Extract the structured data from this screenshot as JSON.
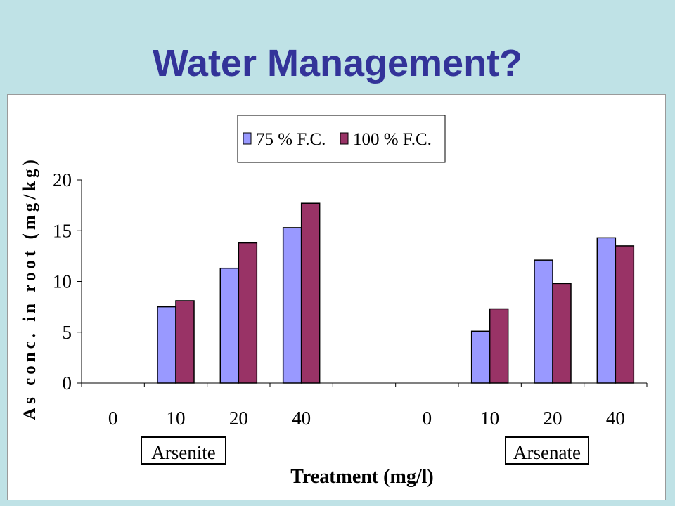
{
  "slide": {
    "title": "Water Management?"
  },
  "chart_data": {
    "type": "bar",
    "title": "",
    "xlabel": "Treatment (mg/l)",
    "ylabel": "As conc. in root (mg/kg)",
    "ylim": [
      0,
      20
    ],
    "yticks": [
      0,
      5,
      10,
      15,
      20
    ],
    "categories": [
      "0",
      "10",
      "20",
      "40",
      "",
      "0",
      "10",
      "20",
      "40"
    ],
    "groups": [
      "Arsenite",
      "Arsenate"
    ],
    "legend_position": "top-center",
    "series": [
      {
        "name": "75 % F.C.",
        "color": "#9999ff",
        "values": [
          0,
          7.5,
          11.3,
          15.3,
          null,
          0,
          5.1,
          12.1,
          14.3
        ]
      },
      {
        "name": "100 % F.C.",
        "color": "#993366",
        "values": [
          0,
          8.1,
          13.8,
          17.7,
          null,
          0,
          7.3,
          9.8,
          13.5
        ]
      }
    ]
  }
}
